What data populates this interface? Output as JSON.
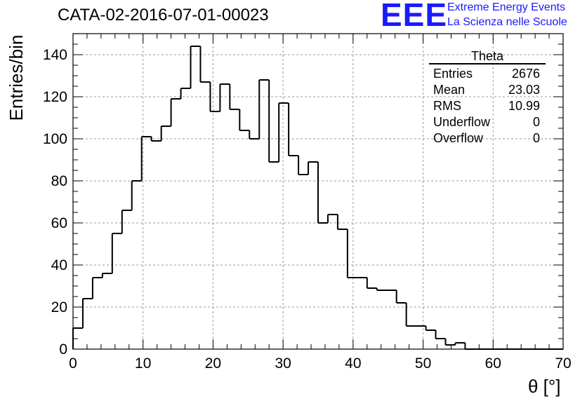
{
  "title": "CATA-02-2016-07-01-00023",
  "logo": {
    "letters": "EEE",
    "line1": "Extreme Energy Events",
    "line2": "La Scienza nelle Scuole"
  },
  "stats": {
    "header": "Theta",
    "rows": [
      {
        "label": "Entries",
        "value": "2676"
      },
      {
        "label": "Mean",
        "value": "23.03"
      },
      {
        "label": "RMS",
        "value": "10.99"
      },
      {
        "label": "Underflow",
        "value": "0"
      },
      {
        "label": "Overflow",
        "value": "0"
      }
    ]
  },
  "chart_data": {
    "type": "histogram",
    "xlabel": "θ [°]",
    "ylabel": "Entries/bin",
    "xlim": [
      0,
      70
    ],
    "ylim": [
      0,
      150
    ],
    "grid": true,
    "bin_width": 1.4,
    "bin_start": 0,
    "values": [
      10,
      24,
      34,
      36,
      55,
      66,
      80,
      101,
      99,
      106,
      119,
      124,
      144,
      127,
      113,
      126,
      114,
      104,
      100,
      128,
      89,
      117,
      92,
      83,
      89,
      60,
      64,
      57,
      34,
      34,
      29,
      28,
      28,
      22,
      11,
      11,
      9,
      5,
      2,
      3,
      0,
      0,
      0,
      0,
      0,
      0,
      0,
      0,
      0,
      0
    ],
    "xticks": [
      0,
      10,
      20,
      30,
      40,
      50,
      60,
      70
    ],
    "yticks": [
      0,
      20,
      40,
      60,
      80,
      100,
      120,
      140
    ]
  }
}
